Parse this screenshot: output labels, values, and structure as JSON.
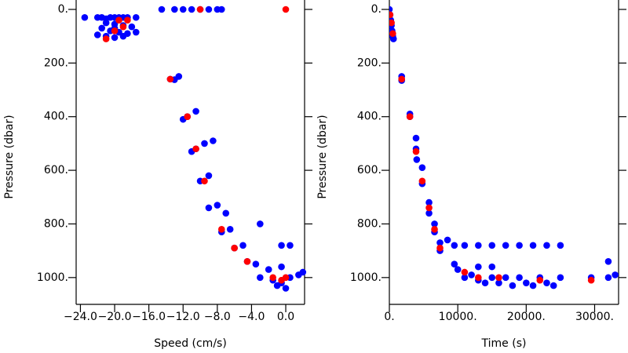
{
  "chart_data": [
    {
      "type": "scatter",
      "xlabel": "Speed (cm/s)",
      "ylabel": "Pressure (dbar)",
      "xlim": [
        -24.5,
        2.2
      ],
      "ylim": [
        0,
        1100
      ],
      "y_inverted": true,
      "xticks": [
        {
          "value": -24,
          "label": "−24.0"
        },
        {
          "value": -20,
          "label": "−20.0"
        },
        {
          "value": -16,
          "label": "−16.0"
        },
        {
          "value": -12,
          "label": "−12.0"
        },
        {
          "value": -8,
          "label": "−8.0"
        },
        {
          "value": -4,
          "label": "−4.0"
        },
        {
          "value": 0,
          "label": "0.0"
        }
      ],
      "yticks": [
        {
          "value": 0,
          "label": "0."
        },
        {
          "value": 200,
          "label": "200."
        },
        {
          "value": 400,
          "label": "400."
        },
        {
          "value": 600,
          "label": "600."
        },
        {
          "value": 800,
          "label": "800."
        },
        {
          "value": 1000,
          "label": "1000."
        }
      ],
      "series": [
        {
          "color": "#0000ff",
          "x": [
            -23.5,
            -22,
            -21.5,
            -21,
            -20.5,
            -20,
            -19.5,
            -19,
            -18.5,
            -17.5,
            -21,
            -20,
            -19,
            -18,
            -21.5,
            -20.5,
            -19.5,
            -18.5,
            -17.5,
            -21,
            -20,
            -19,
            -22,
            -20,
            -14.5,
            -13,
            -12,
            -11,
            -10,
            -9,
            -8,
            -7.5,
            -13.5,
            -13,
            -12.5,
            -12,
            -11.5,
            -10.5,
            -11,
            -10.5,
            -9.5,
            -10,
            -9,
            -8.5,
            -9,
            -8,
            -7,
            -7.5,
            -6.5,
            -6,
            -5,
            -3,
            -4.5,
            -3.5,
            -2,
            -3,
            -1.5,
            -0.5,
            0.5,
            1.5,
            2,
            -0.5,
            0.5,
            -0.5,
            -1,
            0
          ],
          "values": [
            30,
            30,
            30,
            35,
            30,
            30,
            30,
            30,
            30,
            30,
            50,
            55,
            60,
            65,
            70,
            80,
            85,
            90,
            85,
            100,
            105,
            100,
            95,
            70,
            0,
            0,
            0,
            0,
            0,
            0,
            0,
            0,
            260,
            262,
            250,
            410,
            400,
            380,
            530,
            520,
            500,
            640,
            620,
            490,
            740,
            730,
            760,
            830,
            820,
            890,
            880,
            800,
            940,
            950,
            970,
            1000,
            1010,
            1020,
            1000,
            990,
            980,
            880,
            880,
            960,
            1030,
            1040
          ]
        },
        {
          "color": "#ff0000",
          "x": [
            -21,
            -20,
            -19,
            -19.5,
            -18.5,
            -10,
            0,
            -13.5,
            -11.5,
            -10.5,
            -9.5,
            -7.5,
            -6,
            -4.5,
            -1.5,
            -0.5,
            0
          ],
          "values": [
            110,
            80,
            65,
            40,
            40,
            0,
            0,
            260,
            400,
            520,
            640,
            820,
            890,
            940,
            1000,
            1010,
            1000
          ]
        }
      ]
    },
    {
      "type": "scatter",
      "xlabel": "Time (s)",
      "ylabel": "Pressure (dbar)",
      "xlim": [
        0,
        33500
      ],
      "ylim": [
        0,
        1100
      ],
      "y_inverted": true,
      "xticks": [
        {
          "value": 0,
          "label": "0."
        },
        {
          "value": 10000,
          "label": "10000."
        },
        {
          "value": 20000,
          "label": "20000."
        },
        {
          "value": 30000,
          "label": "30000."
        }
      ],
      "yticks": [
        {
          "value": 0,
          "label": "0."
        },
        {
          "value": 200,
          "label": "200."
        },
        {
          "value": 400,
          "label": "400."
        },
        {
          "value": 600,
          "label": "600."
        },
        {
          "value": 800,
          "label": "800."
        },
        {
          "value": 1000,
          "label": "1000."
        }
      ],
      "series": [
        {
          "color": "#0000ff",
          "x": [
            0,
            100,
            200,
            300,
            400,
            500,
            600,
            1800,
            1800,
            3000,
            3000,
            3900,
            3900,
            4000,
            4800,
            4800,
            5800,
            5800,
            6600,
            6600,
            7400,
            7400,
            8500,
            9500,
            11000,
            13000,
            15000,
            17000,
            19000,
            21000,
            23000,
            25000,
            9500,
            10000,
            11000,
            12000,
            13000,
            14000,
            15000,
            16000,
            17000,
            18000,
            19000,
            20000,
            21000,
            22000,
            23000,
            24000,
            25000,
            29500,
            32000,
            32000,
            33000,
            13000,
            15000
          ],
          "values": [
            0,
            20,
            40,
            60,
            80,
            100,
            110,
            250,
            265,
            390,
            400,
            480,
            520,
            560,
            590,
            650,
            720,
            760,
            800,
            830,
            900,
            870,
            860,
            880,
            880,
            880,
            880,
            880,
            880,
            880,
            880,
            880,
            950,
            970,
            1000,
            990,
            1010,
            1020,
            1000,
            1020,
            1000,
            1030,
            1000,
            1020,
            1030,
            1000,
            1020,
            1030,
            1000,
            1000,
            940,
            1000,
            990,
            960,
            960
          ]
        },
        {
          "color": "#ff0000",
          "x": [
            100,
            300,
            500,
            1800,
            3000,
            3900,
            4800,
            5800,
            6600,
            7400,
            11000,
            13000,
            16000,
            22000,
            29500
          ],
          "values": [
            20,
            50,
            90,
            260,
            400,
            530,
            640,
            740,
            820,
            890,
            980,
            1000,
            1000,
            1010,
            1010
          ]
        }
      ]
    }
  ]
}
